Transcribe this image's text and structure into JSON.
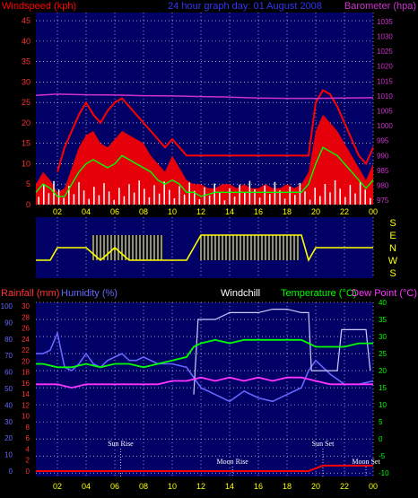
{
  "header": {
    "windspeed_label": "Windspeed (kph)",
    "title": "24 hour graph day: 01 August 2008",
    "barometer_label": "Barometer (hpa)"
  },
  "labels": {
    "rainfall": "Rainfall (mm)",
    "humidity": "Humidity (%)",
    "windchill": "Windchill",
    "temperature": "Temperature (°C)",
    "dewpoint": "Dew Point (°C)",
    "sun_rise": "Sun Rise",
    "moon_rise": "Moon Rise",
    "sun_set": "Sun Set",
    "moon_set": "Moon Set"
  },
  "colors": {
    "wind_avg": "#ff0000",
    "wind_smooth": "#00ff00",
    "wind_gust": "#ffffff",
    "barometer": "#cc33cc",
    "direction": "#ffff00",
    "rainfall": "#ff0000",
    "humidity": "#6666ff",
    "windchill": "#ccccff",
    "temperature": "#00ff00",
    "dewpoint": "#ff33ff",
    "grid": "#ffffff",
    "panel_bg": "#000066"
  },
  "chart_data": [
    {
      "type": "line",
      "panel": "wind-barometer",
      "x_ticks": [
        "02",
        "04",
        "06",
        "08",
        "10",
        "12",
        "14",
        "16",
        "18",
        "20",
        "22",
        "00"
      ],
      "y_left_ticks": [
        "0",
        "5",
        "10",
        "15",
        "20",
        "25",
        "30",
        "35",
        "40",
        "45"
      ],
      "y_left_range": [
        0,
        47
      ],
      "y_right_ticks": [
        "975",
        "980",
        "985",
        "990",
        "995",
        "1000",
        "1005",
        "1010",
        "1015",
        "1020",
        "1025",
        "1030",
        "1035"
      ],
      "y_right_range": [
        973.5,
        1038
      ],
      "x_range": [
        0.5,
        24
      ],
      "series": [
        {
          "name": "Windspeed (kph)",
          "x": [
            0.5,
            1.0,
            1.5,
            2.0,
            2.5,
            3.0,
            3.5,
            4.0,
            4.5,
            5.0,
            5.5,
            6.0,
            6.5,
            7.0,
            7.5,
            8.0,
            8.5,
            9.0,
            9.5,
            10.0,
            10.5,
            11.0,
            11.5,
            12.0,
            12.5,
            13.0,
            13.5,
            14.0,
            14.5,
            15.0,
            15.5,
            16.0,
            16.5,
            17.0,
            17.5,
            18.0,
            18.5,
            19.0,
            19.5,
            20.0,
            20.5,
            21.0,
            21.5,
            22.0,
            22.5,
            23.0,
            23.5,
            24.0
          ],
          "values": [
            5,
            8,
            6,
            3,
            4,
            9,
            14,
            17,
            18,
            15,
            14,
            16,
            18,
            17,
            16,
            15,
            12,
            10,
            8,
            12,
            9,
            6,
            5,
            5,
            4,
            4,
            5,
            5,
            4,
            5,
            4,
            4,
            5,
            4,
            4,
            5,
            4,
            5,
            8,
            18,
            22,
            20,
            18,
            15,
            12,
            9,
            6,
            10
          ]
        },
        {
          "name": "gust",
          "x": [
            2.0,
            2.5,
            3.0,
            3.5,
            4.0,
            4.5,
            5.0,
            5.5,
            6.0,
            6.5,
            7.0,
            7.5,
            8.0,
            8.5,
            9.0,
            9.5,
            10.0,
            10.5,
            11.0,
            19.5,
            20.0,
            20.5,
            21.0,
            21.5,
            22.0,
            22.5,
            23.0,
            23.5,
            24.0
          ],
          "values": [
            8,
            14,
            18,
            22,
            25,
            22,
            20,
            23,
            25,
            26,
            24,
            22,
            20,
            18,
            16,
            14,
            16,
            14,
            12,
            12,
            25,
            28,
            27,
            24,
            20,
            16,
            12,
            10,
            14
          ]
        },
        {
          "name": "average",
          "x": [
            0.5,
            1.0,
            1.5,
            2.0,
            2.5,
            3.0,
            3.5,
            4.0,
            4.5,
            5.0,
            5.5,
            6.0,
            6.5,
            7.0,
            7.5,
            8.0,
            8.5,
            9.0,
            9.5,
            10.0,
            10.5,
            11.0,
            11.5,
            12.0,
            13.0,
            14.0,
            15.0,
            16.0,
            17.0,
            18.0,
            19.0,
            19.5,
            20.0,
            20.5,
            21.0,
            21.5,
            22.0,
            22.5,
            23.0,
            23.5,
            24.0
          ],
          "values": [
            3,
            5,
            4,
            2,
            2,
            5,
            8,
            10,
            11,
            10,
            9,
            10,
            12,
            11,
            10,
            9,
            8,
            6,
            5,
            6,
            5,
            3,
            3,
            2,
            3,
            3,
            3,
            3,
            3,
            3,
            3,
            5,
            10,
            14,
            13,
            12,
            10,
            8,
            6,
            4,
            6
          ]
        },
        {
          "name": "Barometer (hpa)",
          "x": [
            0.5,
            2,
            4,
            6,
            8,
            10,
            12,
            14,
            16,
            18,
            20,
            22,
            24
          ],
          "values": [
            1010.2,
            1010.6,
            1010.4,
            1010.3,
            1010.1,
            1010.0,
            1009.8,
            1009.6,
            1009.3,
            1009.2,
            1009.2,
            1009.3,
            1009.4
          ]
        }
      ]
    },
    {
      "type": "line",
      "panel": "wind-direction",
      "y_ticks": [
        "S",
        "E",
        "N",
        "W",
        "S"
      ],
      "series": [
        {
          "name": "direction",
          "x": [
            0.5,
            1,
            1.5,
            2,
            3,
            4,
            5,
            6,
            7,
            8,
            9,
            10,
            11,
            12,
            13,
            14,
            15,
            16,
            17,
            18,
            19,
            19.5,
            20,
            21,
            22,
            23,
            24
          ],
          "values": [
            "W",
            "W",
            "W",
            "N",
            "N",
            "N",
            "W",
            "N",
            "W",
            "W",
            "W",
            "W",
            "W",
            "E",
            "E",
            "E",
            "E",
            "E",
            "E",
            "E",
            "E",
            "W",
            "N",
            "N",
            "N",
            "N",
            "N"
          ]
        }
      ]
    },
    {
      "type": "line",
      "panel": "temperature-humidity",
      "x_ticks": [
        "02",
        "04",
        "06",
        "08",
        "10",
        "12",
        "14",
        "16",
        "18",
        "20",
        "22",
        "00"
      ],
      "y_humidity_ticks": [
        "0",
        "10",
        "20",
        "30",
        "40",
        "50",
        "60",
        "70",
        "80",
        "90",
        "100"
      ],
      "y_rain_ticks": [
        "0",
        "2",
        "4",
        "6",
        "8",
        "10",
        "12",
        "14",
        "16",
        "18",
        "20",
        "22",
        "24",
        "26",
        "28",
        "30"
      ],
      "y_temp_ticks": [
        "-10",
        "-5",
        "0",
        "5",
        "10",
        "15",
        "20",
        "25",
        "30",
        "35",
        "40"
      ],
      "y_temp_range": [
        -11,
        40
      ],
      "series": [
        {
          "name": "Rainfall (mm)",
          "x": [
            0.5,
            19.5,
            20.5,
            21,
            22,
            23,
            24
          ],
          "values": [
            0,
            0,
            1,
            1,
            1,
            1,
            1
          ]
        },
        {
          "name": "Humidity (%)",
          "x": [
            0.5,
            1,
            1.5,
            2,
            2.5,
            3,
            3.5,
            4,
            4.5,
            5,
            5.5,
            6,
            6.5,
            7,
            7.5,
            8,
            9,
            10,
            11,
            12,
            13,
            14,
            15,
            16,
            17,
            18,
            19,
            19.5,
            20,
            20.5,
            21,
            22,
            23,
            24
          ],
          "values": [
            25,
            25,
            26,
            31,
            21,
            20,
            22,
            25,
            22,
            21,
            23,
            24,
            25,
            23,
            23,
            24,
            22,
            22,
            21,
            15,
            13,
            11,
            14,
            12,
            11,
            13,
            15,
            20,
            23,
            21,
            19,
            16,
            16,
            17
          ]
        },
        {
          "name": "Windchill",
          "x": [
            11.5,
            11.8,
            12,
            13,
            14,
            15,
            16,
            17,
            18,
            19,
            19.5,
            19.7,
            20,
            21,
            21.5,
            21.8,
            22,
            23,
            23.5,
            23.8
          ],
          "values": [
            13,
            35,
            35,
            35,
            37,
            37,
            37,
            38,
            38,
            37,
            37,
            20,
            20,
            20,
            20,
            32,
            32,
            32,
            32,
            20
          ]
        },
        {
          "name": "Temperature (°C)",
          "x": [
            0.5,
            1,
            2,
            3,
            4,
            5,
            6,
            7,
            8,
            9,
            10,
            11,
            11.5,
            12,
            13,
            14,
            15,
            16,
            17,
            18,
            19,
            19.5,
            20,
            21,
            22,
            23,
            24
          ],
          "values": [
            22,
            22,
            21,
            21,
            22,
            21,
            22,
            22,
            21,
            22,
            23,
            24,
            27,
            28,
            29,
            28,
            29,
            29,
            29,
            29,
            29,
            28,
            27,
            27,
            27,
            28,
            28
          ]
        },
        {
          "name": "Dew Point (°C)",
          "x": [
            0.5,
            1,
            2,
            3,
            4,
            5,
            6,
            7,
            8,
            9,
            10,
            11,
            12,
            13,
            14,
            15,
            16,
            17,
            18,
            19,
            20,
            21,
            22,
            23,
            24
          ],
          "values": [
            16,
            16,
            16,
            15,
            16,
            16,
            16,
            16,
            16,
            16,
            17,
            17,
            18,
            17,
            18,
            17,
            18,
            17,
            18,
            18,
            17,
            16,
            16,
            16,
            16
          ]
        }
      ],
      "events": [
        {
          "label": "Sun Rise",
          "x": 6.4
        },
        {
          "label": "Moon Rise",
          "x": 14.2
        },
        {
          "label": "Sun Set",
          "x": 20.5
        },
        {
          "label": "Moon Set",
          "x": 23.5
        }
      ]
    }
  ]
}
